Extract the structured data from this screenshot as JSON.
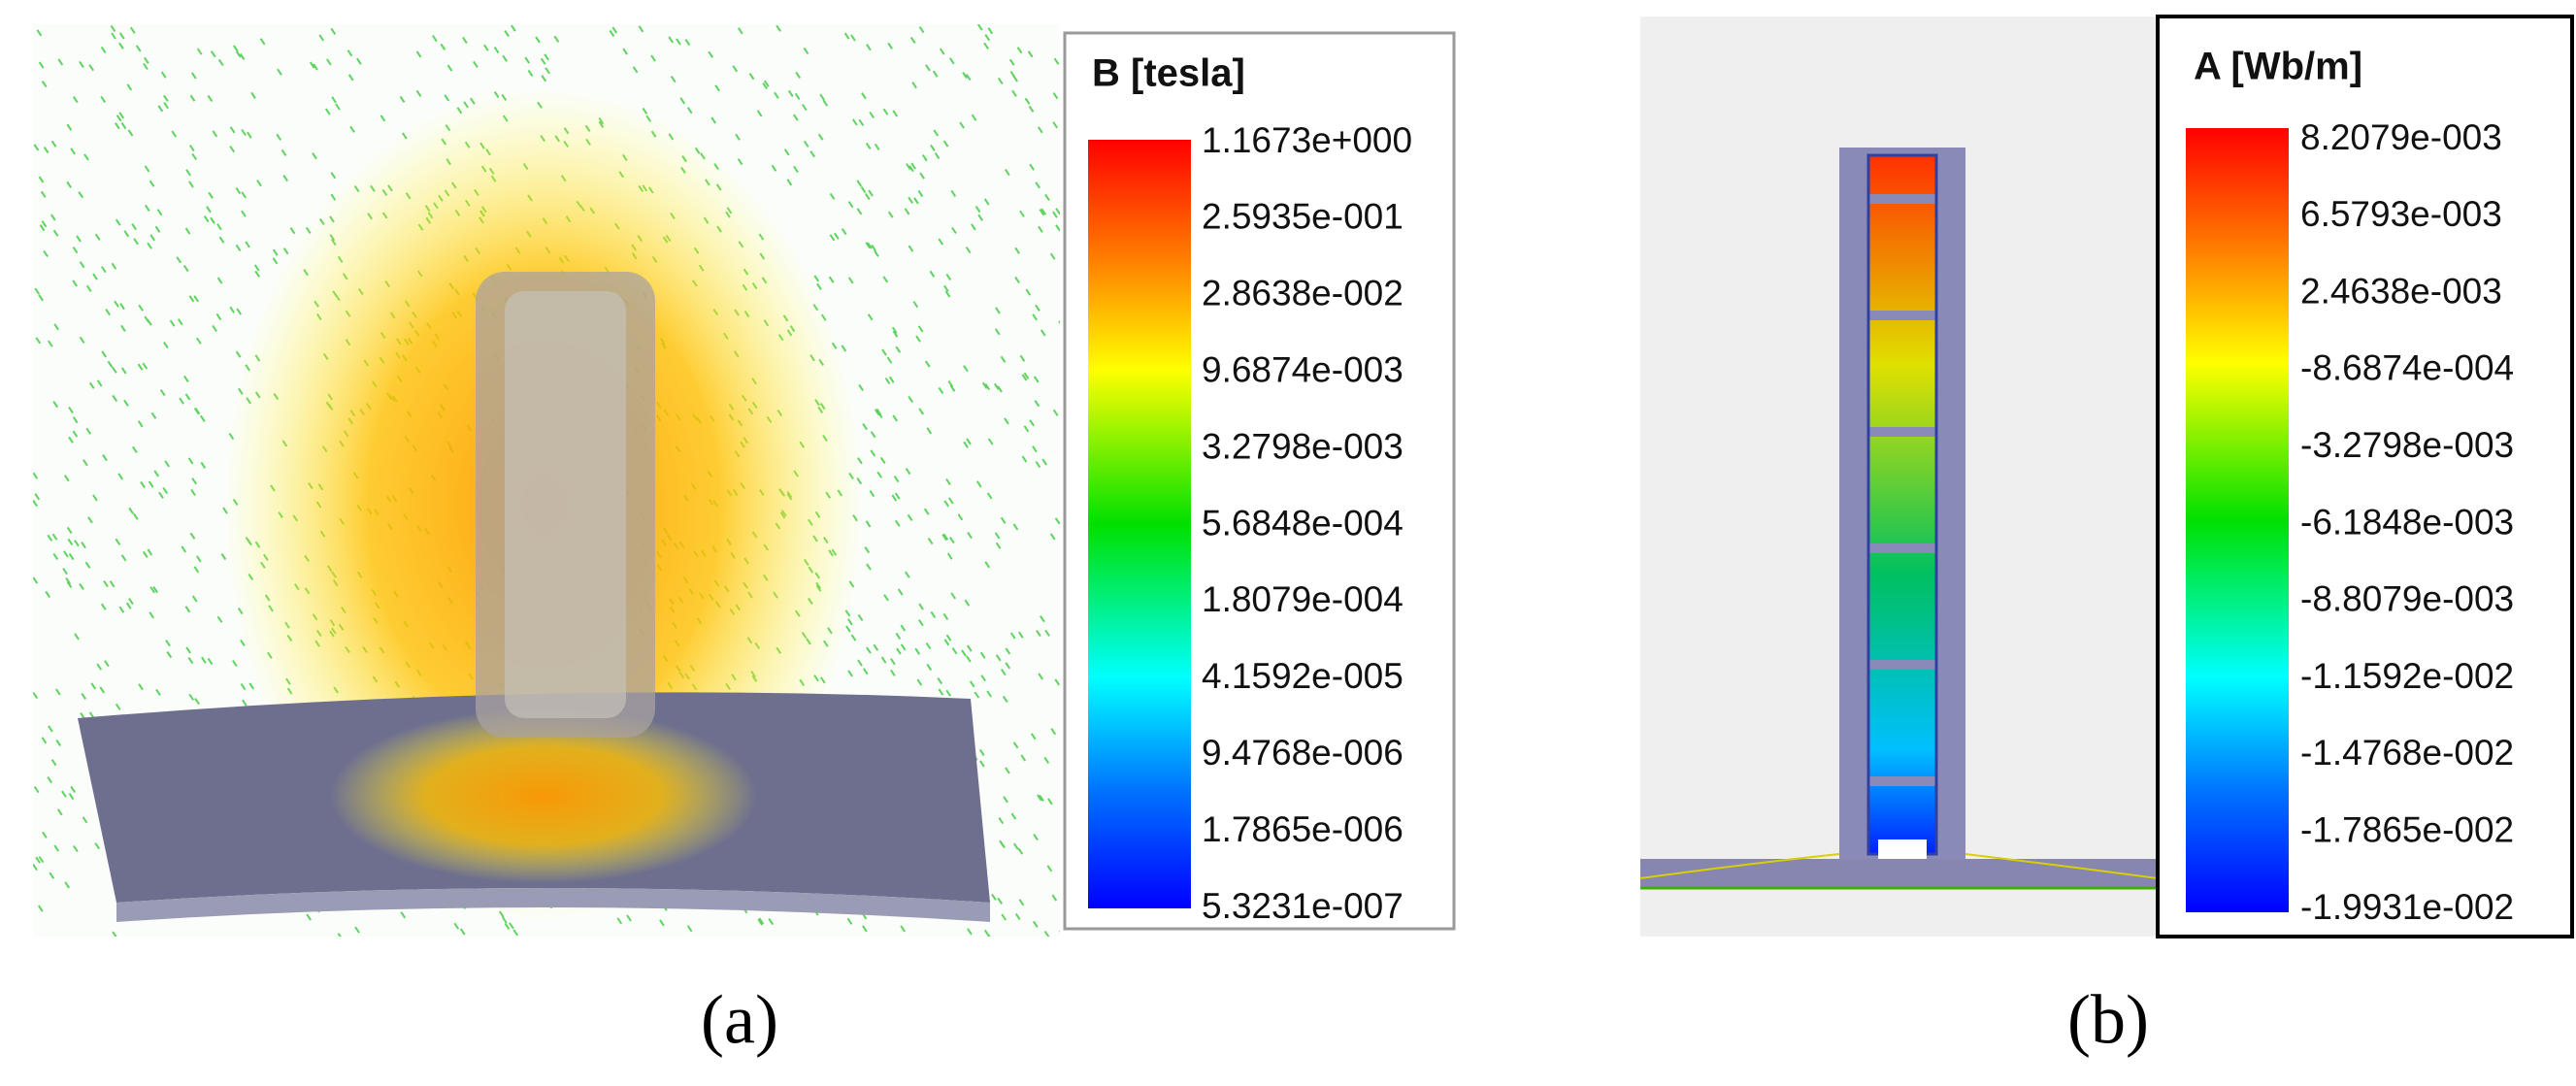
{
  "panels": [
    {
      "legend": {
        "title": "B [tesla]",
        "labels": [
          "1.1673e+000",
          "2.5935e-001",
          "2.8638e-002",
          "9.6874e-003",
          "3.2798e-003",
          "5.6848e-004",
          "1.8079e-004",
          "4.1592e-005",
          "9.4768e-006",
          "1.7865e-006",
          "5.3231e-007"
        ]
      },
      "caption": "(a)"
    },
    {
      "legend": {
        "title": "A [Wb/m]",
        "labels": [
          "8.2079e-003",
          "6.5793e-003",
          "2.4638e-003",
          "-8.6874e-004",
          "-3.2798e-003",
          "-6.1848e-003",
          "-8.8079e-003",
          "-1.1592e-002",
          "-1.4768e-002",
          "-1.7865e-002",
          "-1.9931e-002"
        ]
      },
      "caption": "(b)"
    }
  ]
}
